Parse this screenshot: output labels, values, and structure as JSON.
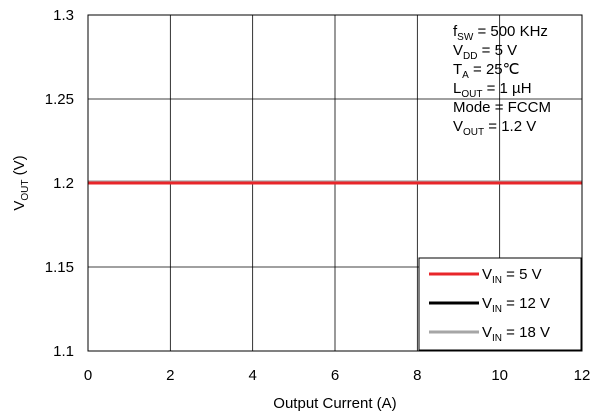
{
  "chart_data": {
    "type": "line",
    "title": "",
    "xlabel": "Output Current (A)",
    "ylabel": {
      "main": "V",
      "sub": "OUT",
      "tail": " (V)"
    },
    "xlim": [
      0,
      12
    ],
    "ylim": [
      1.1,
      1.3
    ],
    "x_ticks": [
      0,
      2,
      4,
      6,
      8,
      10,
      12
    ],
    "x_tick_labels": [
      "0",
      "2",
      "4",
      "6",
      "8",
      "10",
      "12"
    ],
    "y_ticks": [
      1.1,
      1.15,
      1.2,
      1.25,
      1.3
    ],
    "y_tick_labels": [
      "1.1",
      "1.15",
      "1.2",
      "1.25",
      "1.3"
    ],
    "grid": true,
    "legend_position": "bottom-right",
    "annotation_position": "top-right",
    "annotations": [
      {
        "main": "f",
        "sub": "SW",
        "tail": " = 500 KHz"
      },
      {
        "main": "V",
        "sub": "DD",
        "tail": " = 5 V"
      },
      {
        "main": "T",
        "sub": "A",
        "tail": " = 25℃"
      },
      {
        "main": "L",
        "sub": "OUT",
        "tail": " = 1 µH"
      },
      {
        "main": "Mode = FCCM",
        "sub": "",
        "tail": ""
      },
      {
        "main": "V",
        "sub": "OUT",
        "tail": " = 1.2 V"
      }
    ],
    "series": [
      {
        "name": {
          "main": "V",
          "sub": "IN",
          "tail": " = 5 V"
        },
        "color": "#e8262a",
        "x": [
          0,
          2,
          4,
          6,
          8,
          10,
          12
        ],
        "y": [
          1.2,
          1.2,
          1.2,
          1.2,
          1.2,
          1.2,
          1.2
        ]
      },
      {
        "name": {
          "main": "V",
          "sub": "IN",
          "tail": " = 12 V"
        },
        "color": "#000000",
        "x": [
          0,
          2,
          4,
          6,
          8,
          10,
          12
        ],
        "y": [
          1.2,
          1.2,
          1.2,
          1.2,
          1.2,
          1.2,
          1.2
        ]
      },
      {
        "name": {
          "main": "V",
          "sub": "IN",
          "tail": " = 18 V"
        },
        "color": "#a6a6a6",
        "x": [
          0,
          2,
          4,
          6,
          8,
          10,
          12
        ],
        "y": [
          1.201,
          1.201,
          1.201,
          1.201,
          1.201,
          1.201,
          1.201
        ]
      }
    ]
  }
}
